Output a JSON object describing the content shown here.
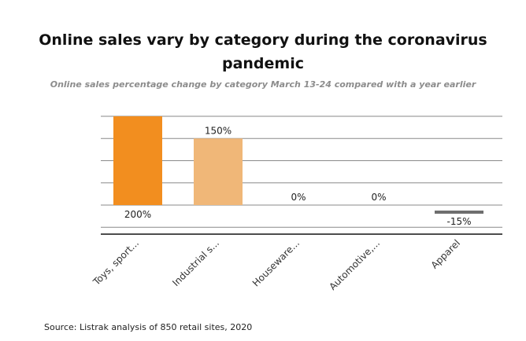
{
  "chart_data": {
    "type": "bar",
    "title": "Online sales vary by category during the coronavirus pandemic",
    "subtitle": "Online sales percentage change by category  March 13-24 compared with a year earlier",
    "source": "Source: Listrak analysis of 850 retail sites, 2020",
    "categories": [
      "Toys, sport...",
      "Industrial s...",
      "Houseware...",
      "Automotive,...",
      "Apparel"
    ],
    "values": [
      200,
      150,
      0,
      0,
      -15
    ],
    "data_labels": [
      "200%",
      "150%",
      "0%",
      "0%",
      "-15%"
    ],
    "colors": [
      "#f28e1f",
      "#f0b778",
      "#f28e1f",
      "#f28e1f",
      "#6e6e6e"
    ],
    "ylim": [
      -65,
      200
    ],
    "xlabel": "",
    "ylabel": "",
    "grid": true,
    "legend": "none"
  }
}
